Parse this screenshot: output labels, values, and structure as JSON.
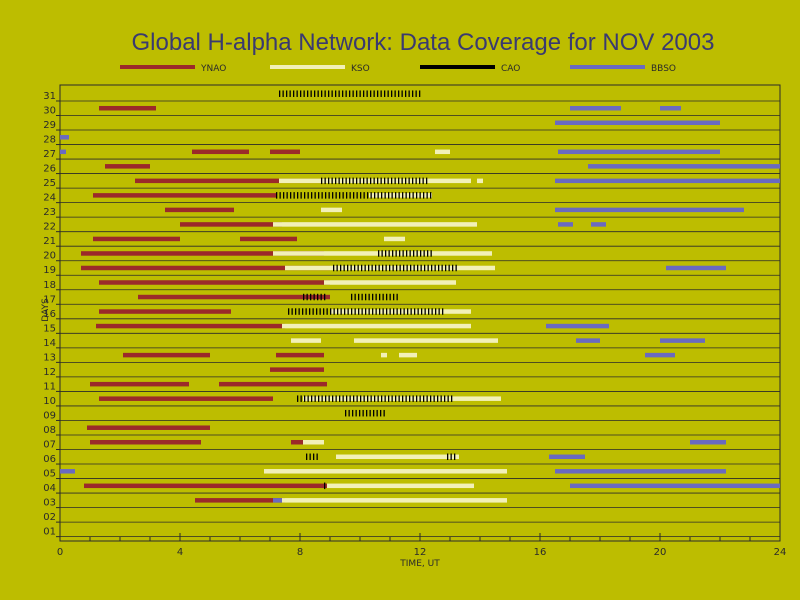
{
  "chart_data": {
    "type": "bar",
    "title": "Global H-alpha Network: Data Coverage for NOV 2003",
    "xlabel": "TIME, UT",
    "ylabel": "DAYS",
    "xlim": [
      0,
      24
    ],
    "ylim": [
      1,
      31
    ],
    "x_ticks": [
      "0",
      "4",
      "8",
      "12",
      "16",
      "20",
      "24"
    ],
    "y_ticks": [
      "01",
      "02",
      "03",
      "04",
      "05",
      "06",
      "07",
      "08",
      "09",
      "10",
      "11",
      "12",
      "13",
      "14",
      "15",
      "16",
      "17",
      "18",
      "19",
      "20",
      "21",
      "22",
      "23",
      "24",
      "25",
      "26",
      "27",
      "28",
      "29",
      "30",
      "31"
    ],
    "grid": "horizontal",
    "legend_position": "top",
    "series": [
      {
        "name": "YNAO",
        "color": "#9b2a2a",
        "intervals": [
          {
            "day": 3,
            "start": 4.5,
            "end": 7.5
          },
          {
            "day": 4,
            "start": 0.8,
            "end": 8.9
          },
          {
            "day": 7,
            "start": 1.0,
            "end": 4.7
          },
          {
            "day": 7,
            "start": 7.7,
            "end": 8.7
          },
          {
            "day": 8,
            "start": 0.9,
            "end": 5.0
          },
          {
            "day": 10,
            "start": 1.3,
            "end": 7.1
          },
          {
            "day": 10,
            "start": 8.3,
            "end": 8.7
          },
          {
            "day": 11,
            "start": 1.0,
            "end": 4.3
          },
          {
            "day": 11,
            "start": 5.3,
            "end": 8.9
          },
          {
            "day": 12,
            "start": 7.0,
            "end": 8.8
          },
          {
            "day": 13,
            "start": 2.1,
            "end": 5.0
          },
          {
            "day": 13,
            "start": 7.2,
            "end": 8.8
          },
          {
            "day": 15,
            "start": 1.2,
            "end": 7.5
          },
          {
            "day": 16,
            "start": 1.3,
            "end": 5.7
          },
          {
            "day": 17,
            "start": 2.6,
            "end": 9.0
          },
          {
            "day": 18,
            "start": 1.3,
            "end": 9.0
          },
          {
            "day": 19,
            "start": 0.7,
            "end": 9.0
          },
          {
            "day": 20,
            "start": 0.7,
            "end": 8.8
          },
          {
            "day": 21,
            "start": 1.1,
            "end": 4.0
          },
          {
            "day": 21,
            "start": 6.0,
            "end": 7.9
          },
          {
            "day": 22,
            "start": 4.0,
            "end": 7.4
          },
          {
            "day": 23,
            "start": 3.5,
            "end": 5.8
          },
          {
            "day": 24,
            "start": 1.1,
            "end": 7.2
          },
          {
            "day": 25,
            "start": 2.5,
            "end": 8.9
          },
          {
            "day": 26,
            "start": 1.5,
            "end": 3.0
          },
          {
            "day": 27,
            "start": 4.4,
            "end": 6.3
          },
          {
            "day": 27,
            "start": 7.0,
            "end": 8.0
          },
          {
            "day": 30,
            "start": 1.3,
            "end": 3.2
          }
        ]
      },
      {
        "name": "KSO",
        "color": "#f2f0b8",
        "intervals": [
          {
            "day": 3,
            "start": 7.4,
            "end": 14.9
          },
          {
            "day": 4,
            "start": 8.9,
            "end": 13.8
          },
          {
            "day": 5,
            "start": 6.8,
            "end": 14.9
          },
          {
            "day": 6,
            "start": 9.2,
            "end": 13.3
          },
          {
            "day": 7,
            "start": 8.1,
            "end": 8.8
          },
          {
            "day": 10,
            "start": 8.1,
            "end": 14.7
          },
          {
            "day": 13,
            "start": 10.7,
            "end": 10.9
          },
          {
            "day": 13,
            "start": 11.3,
            "end": 11.9
          },
          {
            "day": 14,
            "start": 7.7,
            "end": 8.7
          },
          {
            "day": 14,
            "start": 9.8,
            "end": 14.6
          },
          {
            "day": 15,
            "start": 7.4,
            "end": 13.7
          },
          {
            "day": 16,
            "start": 9.0,
            "end": 13.7
          },
          {
            "day": 18,
            "start": 8.8,
            "end": 13.2
          },
          {
            "day": 19,
            "start": 7.5,
            "end": 14.5
          },
          {
            "day": 20,
            "start": 7.1,
            "end": 14.4
          },
          {
            "day": 21,
            "start": 10.8,
            "end": 11.5
          },
          {
            "day": 22,
            "start": 7.1,
            "end": 13.9
          },
          {
            "day": 23,
            "start": 8.7,
            "end": 9.4
          },
          {
            "day": 24,
            "start": 10.3,
            "end": 12.4
          },
          {
            "day": 25,
            "start": 7.3,
            "end": 13.7
          },
          {
            "day": 25,
            "start": 13.9,
            "end": 14.1
          },
          {
            "day": 27,
            "start": 12.5,
            "end": 13.0
          }
        ]
      },
      {
        "name": "CAO",
        "color": "#000000",
        "intervals": [
          {
            "day": 4,
            "start": 8.8,
            "end": 8.9
          },
          {
            "day": 6,
            "start": 8.2,
            "end": 8.6
          },
          {
            "day": 6,
            "start": 12.9,
            "end": 13.2
          },
          {
            "day": 9,
            "start": 9.5,
            "end": 10.8
          },
          {
            "day": 10,
            "start": 7.9,
            "end": 13.1
          },
          {
            "day": 16,
            "start": 7.6,
            "end": 12.8
          },
          {
            "day": 17,
            "start": 8.1,
            "end": 8.9
          },
          {
            "day": 17,
            "start": 9.7,
            "end": 11.3
          },
          {
            "day": 19,
            "start": 9.1,
            "end": 13.2
          },
          {
            "day": 20,
            "start": 10.6,
            "end": 12.4
          },
          {
            "day": 24,
            "start": 7.2,
            "end": 12.4
          },
          {
            "day": 25,
            "start": 8.7,
            "end": 12.3
          },
          {
            "day": 31,
            "start": 7.3,
            "end": 12.0
          }
        ]
      },
      {
        "name": "BBSO",
        "color": "#6a6ac0",
        "intervals": [
          {
            "day": 3,
            "start": 7.1,
            "end": 7.4
          },
          {
            "day": 4,
            "start": 17.0,
            "end": 24.0
          },
          {
            "day": 5,
            "start": 0.0,
            "end": 0.5
          },
          {
            "day": 5,
            "start": 16.5,
            "end": 22.2
          },
          {
            "day": 6,
            "start": 16.3,
            "end": 17.5
          },
          {
            "day": 7,
            "start": 21.0,
            "end": 22.2
          },
          {
            "day": 13,
            "start": 19.5,
            "end": 20.5
          },
          {
            "day": 14,
            "start": 17.2,
            "end": 18.0
          },
          {
            "day": 14,
            "start": 20.0,
            "end": 21.5
          },
          {
            "day": 15,
            "start": 16.2,
            "end": 18.3
          },
          {
            "day": 19,
            "start": 20.2,
            "end": 22.2
          },
          {
            "day": 22,
            "start": 16.6,
            "end": 17.1
          },
          {
            "day": 22,
            "start": 17.7,
            "end": 18.2
          },
          {
            "day": 23,
            "start": 16.5,
            "end": 22.8
          },
          {
            "day": 25,
            "start": 16.5,
            "end": 24.0
          },
          {
            "day": 26,
            "start": 17.6,
            "end": 24.0
          },
          {
            "day": 27,
            "start": 0.0,
            "end": 0.2
          },
          {
            "day": 27,
            "start": 16.6,
            "end": 22.0
          },
          {
            "day": 28,
            "start": 0.0,
            "end": 0.3
          },
          {
            "day": 29,
            "start": 16.5,
            "end": 22.0
          },
          {
            "day": 30,
            "start": 17.0,
            "end": 18.7
          },
          {
            "day": 30,
            "start": 20.0,
            "end": 20.7
          }
        ]
      }
    ]
  }
}
